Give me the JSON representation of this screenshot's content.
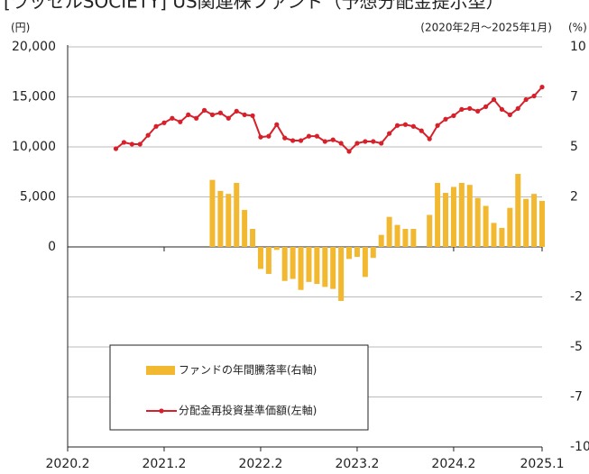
{
  "chart_data": {
    "type": "combo",
    "title": "[ラッセルSOCIETY] US関連株ファンド（予想分配金提示型）",
    "y_unit": "(円)",
    "y2_unit": "(%)",
    "period": "(2020年2月～2025年1月)",
    "categories": [
      "2020.2",
      null,
      null,
      null,
      null,
      null,
      null,
      null,
      null,
      null,
      null,
      null,
      "2021.2",
      null,
      null,
      null,
      null,
      null,
      null,
      null,
      null,
      null,
      null,
      null,
      "2022.2",
      null,
      null,
      null,
      null,
      null,
      null,
      null,
      null,
      null,
      null,
      null,
      "2023.2",
      null,
      null,
      null,
      null,
      null,
      null,
      null,
      null,
      null,
      null,
      null,
      "2024.2",
      null,
      null,
      null,
      null,
      null,
      null,
      null,
      null,
      null,
      null,
      "2025.1"
    ],
    "ylim": [
      -20000,
      20000
    ],
    "yticks": [
      {
        "value": 20000,
        "label": "20,000"
      },
      {
        "value": 15000,
        "label": "15,000"
      },
      {
        "value": 10000,
        "label": "10,000"
      },
      {
        "value": 5000,
        "label": "5,000"
      },
      0
    ],
    "y2lim": [
      -10,
      10
    ],
    "y2ticks": [
      10,
      {
        "value": 7.5,
        "label": "7"
      },
      5,
      {
        "value": 2.5,
        "label": "2"
      },
      {
        "value": -2.5,
        "label": "-2"
      },
      -5,
      {
        "value": -7.5,
        "label": "-7"
      },
      -10
    ],
    "grid": true,
    "series": [
      {
        "name": "ファンドの年間騰落率(右軸)",
        "type": "bar",
        "axis": "y2",
        "color": "#f2b830",
        "values": [
          null,
          null,
          null,
          null,
          null,
          null,
          null,
          null,
          null,
          null,
          null,
          null,
          null,
          null,
          null,
          null,
          null,
          null,
          3.35,
          2.8,
          2.65,
          3.2,
          1.85,
          0.9,
          -1.1,
          -1.35,
          -0.15,
          -1.7,
          -1.6,
          -2.15,
          -1.75,
          -1.85,
          -2.0,
          -2.1,
          -2.7,
          -0.6,
          -0.5,
          -1.5,
          -0.55,
          0.6,
          1.5,
          1.1,
          0.9,
          0.9,
          0,
          1.6,
          3.2,
          2.7,
          3.0,
          3.2,
          3.1,
          2.45,
          2.05,
          1.2,
          0.95,
          1.95,
          3.65,
          2.4,
          2.65,
          2.3
        ]
      },
      {
        "name": "分配金再投資基準価額(左軸)",
        "type": "line",
        "color": "#d7202a",
        "values": [
          null,
          null,
          null,
          null,
          null,
          null,
          9820,
          10450,
          10270,
          10270,
          11160,
          12050,
          12410,
          12860,
          12500,
          13210,
          12860,
          13660,
          13210,
          13400,
          12860,
          13570,
          13210,
          13120,
          10980,
          11070,
          12230,
          10890,
          10630,
          10630,
          11070,
          11070,
          10540,
          10710,
          10360,
          9550,
          10360,
          10540,
          10540,
          10360,
          11340,
          12140,
          12230,
          12050,
          11610,
          10800,
          12140,
          12770,
          13120,
          13750,
          13840,
          13570,
          14020,
          14730,
          13750,
          13210,
          13840,
          14730,
          15090,
          15980
        ]
      }
    ]
  }
}
